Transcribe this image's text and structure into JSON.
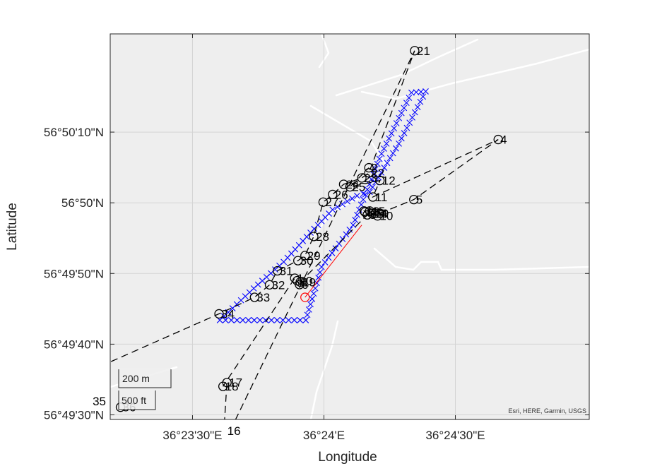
{
  "map": {
    "xlabel": "Longitude",
    "ylabel": "Latitude",
    "attribution": "Esri, HERE, Garmin, USGS",
    "lon_ticks": [
      {
        "value": 36.391667,
        "label": "36°23'30\"E"
      },
      {
        "value": 36.4,
        "label": "36°24'E"
      },
      {
        "value": 36.408333,
        "label": "36°24'30\"E"
      }
    ],
    "lat_ticks": [
      {
        "value": 56.836111,
        "label": "56°50'10\"N"
      },
      {
        "value": 56.833333,
        "label": "56°50'N"
      },
      {
        "value": 56.830556,
        "label": "56°49'50\"N"
      },
      {
        "value": 56.827778,
        "label": "56°49'40\"N"
      },
      {
        "value": 56.825,
        "label": "56°49'30\"N"
      }
    ],
    "scale_bar": {
      "metric": "200 m",
      "imperial": "500 ft"
    },
    "colors": {
      "background": "#eeeeee",
      "roads": "#ffffff",
      "grid": "#d4d4d4",
      "track": "#0000ff",
      "path": "#000000",
      "red": "#ff0000"
    }
  },
  "chart_data": {
    "type": "scatter",
    "xlabel": "Longitude",
    "ylabel": "Latitude",
    "xlim": [
      36.38645,
      36.41682
    ],
    "ylim": [
      56.82482,
      56.83997
    ],
    "grid": true,
    "waypoints": [
      {
        "label": "1",
        "lon": 36.39815,
        "lat": 56.83037
      },
      {
        "label": "2",
        "lon": 36.40285,
        "lat": 56.83471
      },
      {
        "label": "3",
        "lon": 36.40275,
        "lat": 56.83286
      },
      {
        "label": "4",
        "lon": 36.41105,
        "lat": 56.83582
      },
      {
        "label": "5",
        "lon": 36.4057,
        "lat": 56.83346
      },
      {
        "label": "6",
        "lon": 36.39845,
        "lat": 56.83012
      },
      {
        "label": "7",
        "lon": 36.40325,
        "lat": 56.83292
      },
      {
        "label": "8",
        "lon": 36.4026,
        "lat": 56.83297
      },
      {
        "label": "9",
        "lon": 36.40355,
        "lat": 56.83292
      },
      {
        "label": "10",
        "lon": 36.4034,
        "lat": 56.83282
      },
      {
        "label": "11",
        "lon": 36.4031,
        "lat": 56.83356
      },
      {
        "label": "12",
        "lon": 36.40355,
        "lat": 56.83421
      },
      {
        "label": "13",
        "lon": 36.40255,
        "lat": 56.83301
      },
      {
        "label": "14",
        "lon": 36.40305,
        "lat": 56.83291
      },
      {
        "label": "15",
        "lon": 36.4029,
        "lat": 56.83301
      },
      {
        "label": "16",
        "lon": 36.3936,
        "lat": 56.8238
      },
      {
        "label": "17",
        "lon": 36.39385,
        "lat": 56.82627
      },
      {
        "label": "18",
        "lon": 36.3936,
        "lat": 56.82612
      },
      {
        "label": "19",
        "lon": 36.3985,
        "lat": 56.83022
      },
      {
        "label": "20",
        "lon": 36.3983,
        "lat": 56.83027
      },
      {
        "label": "21",
        "lon": 36.40575,
        "lat": 56.83931
      },
      {
        "label": "22",
        "lon": 36.40285,
        "lat": 56.83451
      },
      {
        "label": "23",
        "lon": 36.4024,
        "lat": 56.83431
      },
      {
        "label": "24",
        "lon": 36.40125,
        "lat": 56.83406
      },
      {
        "label": "25",
        "lon": 36.40165,
        "lat": 56.83396
      },
      {
        "label": "26",
        "lon": 36.40055,
        "lat": 56.83366
      },
      {
        "label": "27",
        "lon": 36.39995,
        "lat": 56.83336
      },
      {
        "label": "28",
        "lon": 36.39935,
        "lat": 56.83201
      },
      {
        "label": "29",
        "lon": 36.3988,
        "lat": 56.83126
      },
      {
        "label": "30",
        "lon": 36.39835,
        "lat": 56.83106
      },
      {
        "label": "31",
        "lon": 36.39705,
        "lat": 56.83066
      },
      {
        "label": "32",
        "lon": 36.39655,
        "lat": 56.83011
      },
      {
        "label": "33",
        "lon": 36.3956,
        "lat": 56.82962
      },
      {
        "label": "34",
        "lon": 36.39335,
        "lat": 56.82897
      },
      {
        "label": "35",
        "lon": 36.37995,
        "lat": 56.8253
      },
      {
        "label": "36",
        "lon": 36.3871,
        "lat": 56.8253
      }
    ],
    "path_order": [
      "35",
      "34",
      "33",
      "32",
      "31",
      "30",
      "29",
      "28",
      "27",
      "26",
      "24",
      "23",
      "22",
      "21",
      "16",
      "17",
      "18",
      "1",
      "6",
      "20",
      "19",
      "3",
      "15",
      "13",
      "8",
      "14",
      "7",
      "10",
      "9",
      "5",
      "4",
      "11",
      "12",
      "25",
      "2"
    ],
    "track_polygon": [
      [
        36.3934,
        56.82872
      ],
      [
        36.39885,
        56.82872
      ],
      [
        36.39985,
        56.83081
      ],
      [
        36.40185,
        56.83246
      ],
      [
        36.40365,
        56.83526
      ],
      [
        36.40555,
        56.83766
      ],
      [
        36.40645,
        56.83771
      ],
      [
        36.40475,
        56.83566
      ],
      [
        36.4029,
        56.83376
      ],
      [
        36.4021,
        56.83361
      ],
      [
        36.40055,
        56.83306
      ],
      [
        36.39915,
        56.83216
      ],
      [
        36.39745,
        56.83101
      ],
      [
        36.39555,
        56.82997
      ],
      [
        36.3934,
        56.82872
      ]
    ],
    "red_segment": [
      [
        36.3988,
        56.82962
      ],
      [
        36.4024,
        56.83246
      ]
    ]
  }
}
